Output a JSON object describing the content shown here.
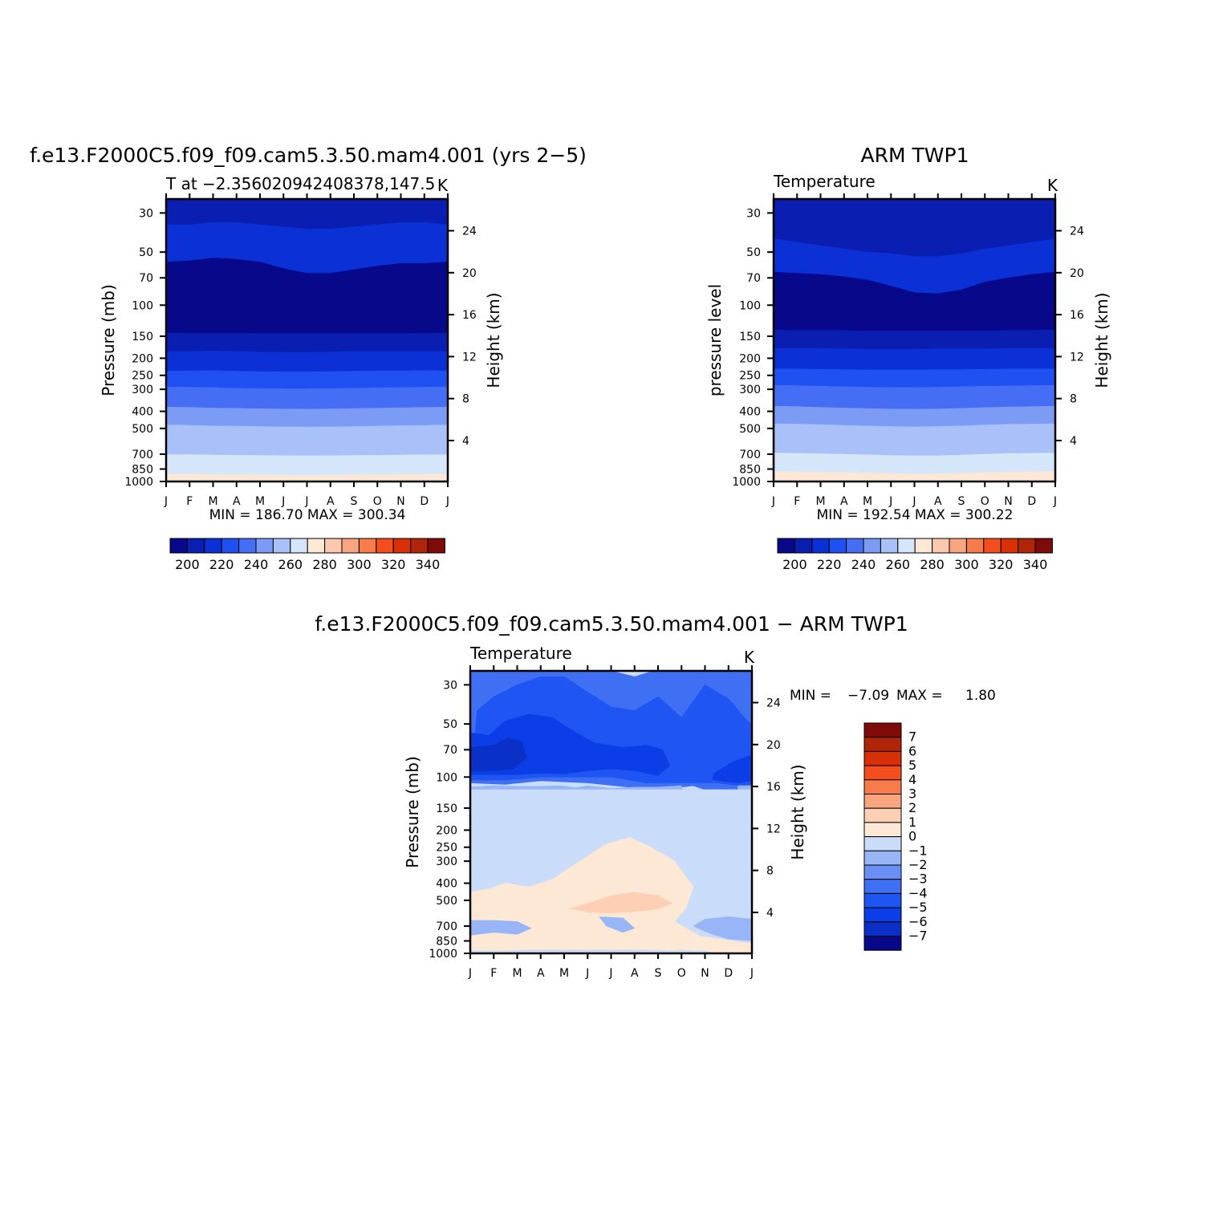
{
  "colors": {
    "temp_palette": [
      "#08088a",
      "#0a1fb2",
      "#0a30d6",
      "#1e50f2",
      "#466ef5",
      "#7b9bf5",
      "#a9c1f8",
      "#d5e6fb",
      "#fde8d5",
      "#fcc8b0",
      "#f9a580",
      "#f77b4b",
      "#f44e1c",
      "#d93008",
      "#b02508",
      "#7f0a0a"
    ],
    "diff_palette": [
      "#08088a",
      "#0a30c8",
      "#0b3ee6",
      "#1f55f2",
      "#3f6ff3",
      "#6a90f5",
      "#98b5f7",
      "#c9dcfa",
      "#fde8d5",
      "#fdd0b5",
      "#f9a580",
      "#f77b4b",
      "#f44e1c",
      "#d93008",
      "#b02508",
      "#7f0a0a"
    ]
  },
  "panels": {
    "model": {
      "title": "f.e13.F2000C5.f09_f09.cam5.3.50.mam4.001 (yrs 2−5)",
      "left_label": "T at −2.356020942408378,147.5",
      "right_label": "K",
      "ylabel": "Pressure (mb)",
      "y2label": "Height (km)",
      "stats": "MIN = 186.70 MAX = 300.34"
    },
    "obs": {
      "title": "ARM TWP1",
      "left_label": "Temperature",
      "right_label": "K",
      "ylabel": "pressure level",
      "y2label": "Height (km)",
      "stats": "MIN = 192.54 MAX = 300.22"
    },
    "diff": {
      "title": "f.e13.F2000C5.f09_f09.cam5.3.50.mam4.001 − ARM TWP1",
      "left_label": "Temperature",
      "right_label": "K",
      "ylabel": "Pressure (mb)",
      "y2label": "Height (km)",
      "stats_min_label": "MIN =",
      "stats_min": "−7.09",
      "stats_max_label": "MAX =",
      "stats_max": "1.80"
    }
  },
  "chart_data": [
    {
      "type": "heatmap",
      "title": "f.e13.F2000C5.f09_f09.cam5.3.50.mam4.001 (yrs 2−5)",
      "subtitle": "T at −2.356020942408378,147.5",
      "units": "K",
      "xlabel": "",
      "ylabel": "Pressure (mb)",
      "y2label": "Height (km)",
      "x_ticks": [
        "J",
        "F",
        "M",
        "A",
        "M",
        "J",
        "J",
        "A",
        "S",
        "O",
        "N",
        "D",
        "J"
      ],
      "y_ticks": [
        30,
        50,
        70,
        100,
        150,
        200,
        250,
        300,
        400,
        500,
        700,
        850,
        1000
      ],
      "y2_ticks": [
        24,
        20,
        16,
        12,
        8,
        4
      ],
      "y_scale": "log",
      "y_range": [
        25,
        1000
      ],
      "contour_levels": [
        200,
        210,
        220,
        230,
        240,
        250,
        260,
        270,
        280,
        290,
        300,
        310,
        320,
        330,
        340
      ],
      "colorbar_labels": [
        200,
        220,
        240,
        260,
        280,
        300,
        320,
        340
      ],
      "min": 186.7,
      "max": 300.34,
      "band_boundaries_mb": [
        [
          35,
          35,
          34,
          34,
          35,
          36,
          37,
          37,
          36,
          35,
          34,
          34,
          35
        ],
        [
          57,
          56,
          54,
          55,
          57,
          62,
          66,
          66,
          63,
          60,
          58,
          58,
          57
        ],
        [
          144,
          144,
          144,
          144,
          145,
          145,
          145,
          145,
          145,
          145,
          145,
          144,
          144
        ],
        [
          183,
          183,
          182,
          183,
          184,
          185,
          185,
          184,
          183,
          183,
          183,
          183,
          183
        ],
        [
          236,
          236,
          235,
          237,
          238,
          239,
          239,
          238,
          237,
          236,
          236,
          235,
          236
        ],
        [
          291,
          292,
          294,
          296,
          297,
          298,
          298,
          297,
          296,
          294,
          293,
          292,
          291
        ],
        [
          378,
          380,
          383,
          385,
          387,
          388,
          389,
          388,
          386,
          384,
          382,
          380,
          378
        ],
        [
          478,
          480,
          484,
          486,
          488,
          490,
          491,
          490,
          488,
          485,
          482,
          480,
          478
        ],
        [
          705,
          705,
          708,
          710,
          712,
          714,
          715,
          714,
          712,
          710,
          708,
          706,
          705
        ],
        [
          910,
          911,
          913,
          915,
          918,
          921,
          922,
          920,
          918,
          915,
          913,
          911,
          910
        ]
      ],
      "band_values_K": [
        205,
        210,
        195,
        205,
        215,
        225,
        235,
        245,
        255,
        265,
        275,
        285,
        295
      ]
    },
    {
      "type": "heatmap",
      "title": "ARM TWP1",
      "subtitle": "Temperature",
      "units": "K",
      "xlabel": "",
      "ylabel": "pressure level",
      "y2label": "Height (km)",
      "x_ticks": [
        "J",
        "F",
        "M",
        "A",
        "M",
        "J",
        "J",
        "A",
        "S",
        "O",
        "N",
        "D",
        "J"
      ],
      "y_ticks": [
        30,
        50,
        70,
        100,
        150,
        200,
        250,
        300,
        400,
        500,
        700,
        850,
        1000
      ],
      "y2_ticks": [
        24,
        20,
        16,
        12,
        8,
        4
      ],
      "y_scale": "log",
      "y_range": [
        25,
        1000
      ],
      "contour_levels": [
        200,
        210,
        220,
        230,
        240,
        250,
        260,
        270,
        280,
        290,
        300,
        310,
        320,
        330,
        340
      ],
      "colorbar_labels": [
        200,
        220,
        240,
        260,
        280,
        300,
        320,
        340
      ],
      "min": 192.54,
      "max": 300.22,
      "band_boundaries_mb": [
        [
          42,
          44,
          46,
          48,
          50,
          51,
          53,
          53,
          51,
          48,
          46,
          44,
          42
        ],
        [
          65,
          66,
          67,
          69,
          72,
          78,
          85,
          86,
          82,
          74,
          70,
          67,
          65
        ],
        [
          138,
          139,
          139,
          139,
          140,
          140,
          140,
          140,
          140,
          140,
          139,
          139,
          138
        ],
        [
          176,
          176,
          176,
          177,
          178,
          178,
          178,
          177,
          177,
          177,
          176,
          176,
          176
        ],
        [
          230,
          230,
          231,
          232,
          233,
          233,
          233,
          232,
          232,
          231,
          230,
          230,
          230
        ],
        [
          285,
          286,
          288,
          290,
          292,
          293,
          293,
          292,
          290,
          288,
          287,
          286,
          285
        ],
        [
          374,
          376,
          380,
          383,
          386,
          388,
          389,
          388,
          385,
          381,
          378,
          376,
          374
        ],
        [
          470,
          472,
          476,
          480,
          484,
          488,
          490,
          488,
          484,
          478,
          474,
          472,
          470
        ],
        [
          690,
          692,
          696,
          700,
          706,
          712,
          716,
          714,
          708,
          700,
          694,
          692,
          690
        ],
        [
          880,
          882,
          886,
          890,
          896,
          902,
          906,
          904,
          898,
          890,
          886,
          882,
          880
        ]
      ],
      "band_values_K": [
        205,
        210,
        195,
        205,
        215,
        225,
        235,
        245,
        255,
        265,
        275,
        285,
        295
      ]
    },
    {
      "type": "heatmap",
      "title": "f.e13.F2000C5.f09_f09.cam5.3.50.mam4.001 − ARM TWP1",
      "subtitle": "Temperature",
      "units": "K",
      "xlabel": "",
      "ylabel": "Pressure (mb)",
      "y2label": "Height (km)",
      "x_ticks": [
        "J",
        "F",
        "M",
        "A",
        "M",
        "J",
        "J",
        "A",
        "S",
        "O",
        "N",
        "D",
        "J"
      ],
      "y_ticks": [
        30,
        50,
        70,
        100,
        150,
        200,
        250,
        300,
        400,
        500,
        700,
        850,
        1000
      ],
      "y2_ticks": [
        24,
        20,
        16,
        12,
        8,
        4
      ],
      "y_scale": "log",
      "y_range": [
        25,
        1000
      ],
      "contour_levels": [
        -7,
        -6,
        -5,
        -4,
        -3,
        -2,
        -1,
        0,
        1,
        2,
        3,
        4,
        5,
        6,
        7
      ],
      "colorbar_labels": [
        7,
        6,
        5,
        4,
        3,
        2,
        1,
        0,
        -1,
        -2,
        -3,
        -4,
        -5,
        -6,
        -7
      ],
      "min": -7.09,
      "max": 1.8,
      "regions": [
        {
          "value": -3.5,
          "x": [
            0,
            0.5,
            1.5,
            2.5,
            3.8,
            5,
            6,
            7,
            7.8,
            9,
            10,
            11,
            12,
            12,
            11,
            10,
            9.5,
            8,
            7,
            5,
            3,
            1.5,
            0
          ],
          "p": [
            25,
            25,
            25,
            25,
            25,
            25,
            25,
            27,
            25,
            25,
            25,
            25,
            25,
            115,
            120,
            118,
            112,
            118,
            115,
            108,
            105,
            110,
            108
          ]
        },
        {
          "value": -4.5,
          "x": [
            0.3,
            1,
            2,
            3,
            4,
            5,
            6,
            7,
            8,
            8.5,
            9,
            10,
            11,
            11.8,
            12,
            12,
            11.5,
            10.5,
            9,
            7.5,
            6,
            4.5,
            3,
            1.5,
            0
          ],
          "p": [
            42,
            35,
            30,
            27,
            27,
            33,
            40,
            42,
            35,
            40,
            46,
            30,
            36,
            48,
            50,
            110,
            112,
            108,
            108,
            108,
            100,
            100,
            100,
            104,
            104
          ]
        },
        {
          "value": -5.5,
          "x": [
            0,
            0.8,
            1.5,
            2.5,
            3.5,
            4.3,
            5.3,
            6.5,
            7.5,
            8.2,
            8.5,
            8,
            7,
            6,
            5,
            4,
            3,
            2,
            1,
            0
          ],
          "p": [
            56,
            58,
            48,
            44,
            46,
            54,
            64,
            68,
            66,
            70,
            86,
            98,
            92,
            90,
            92,
            96,
            95,
            97,
            97,
            97
          ]
        },
        {
          "value": -6.5,
          "x": [
            0,
            1,
            1.6,
            2.2,
            2.4,
            1.8,
            1,
            0
          ],
          "p": [
            68,
            66,
            60,
            63,
            78,
            90,
            92,
            92
          ]
        },
        {
          "value": -5.5,
          "x": [
            10.4,
            11.2,
            12,
            12,
            11.4,
            10.8,
            10.3
          ],
          "p": [
            95,
            82,
            75,
            105,
            108,
            106,
            103
          ]
        },
        {
          "value": -1.5,
          "x": [
            0,
            1,
            2,
            3,
            3.8,
            4.5,
            5,
            6,
            7,
            8,
            9,
            9.4,
            9.7,
            10.3,
            10.9,
            11.4,
            11.4,
            12,
            12,
            0
          ],
          "p": [
            114,
            112,
            113,
            113,
            112,
            115,
            112,
            116,
            114,
            114,
            112,
            200,
            300,
            300,
            240,
            160,
            112,
            112,
            118,
            118
          ]
        },
        {
          "value": -0.5,
          "x": [
            0,
            12,
            12,
            11,
            10.5,
            9.5,
            9,
            8,
            6,
            4.5,
            3,
            1.5,
            0
          ],
          "p": [
            118,
            118,
            430,
            430,
            450,
            440,
            420,
            350,
            250,
            250,
            270,
            340,
            400
          ]
        },
        {
          "value": 0.5,
          "x": [
            0,
            0.8,
            1.5,
            2.5,
            3.5,
            4.5,
            5.8,
            6.8,
            7.7,
            8.7,
            9.5,
            9.2,
            8.7,
            9.8,
            12,
            12,
            11,
            10.5,
            10,
            9.5,
            9,
            8.5,
            7.5,
            6.5,
            5.5,
            4.5,
            3.5,
            2.5,
            1.5,
            0
          ],
          "p": [
            450,
            430,
            400,
            420,
            380,
            310,
            240,
            220,
            250,
            300,
            420,
            550,
            660,
            800,
            880,
            1000,
            1000,
            1000,
            960,
            960,
            950,
            960,
            950,
            950,
            950,
            950,
            950,
            950,
            960,
            960
          ]
        },
        {
          "value": 1.5,
          "x": [
            4.2,
            5,
            6,
            7,
            8,
            8.6,
            8,
            7,
            6,
            5,
            4.4,
            4.2
          ],
          "p": [
            560,
            520,
            470,
            450,
            470,
            520,
            560,
            580,
            590,
            585,
            560,
            560
          ]
        },
        {
          "value": -1.5,
          "x": [
            0,
            1,
            2,
            2.6,
            2,
            1,
            0
          ],
          "p": [
            650,
            650,
            660,
            720,
            780,
            760,
            790
          ]
        },
        {
          "value": -1.5,
          "x": [
            9.5,
            10,
            11,
            12,
            12,
            11,
            10.2,
            9.5
          ],
          "p": [
            700,
            640,
            620,
            640,
            850,
            830,
            770,
            700
          ]
        },
        {
          "value": -1.5,
          "x": [
            5.5,
            6.5,
            7,
            6.5,
            5.8,
            5.5
          ],
          "p": [
            620,
            630,
            720,
            760,
            700,
            620
          ]
        }
      ]
    }
  ]
}
